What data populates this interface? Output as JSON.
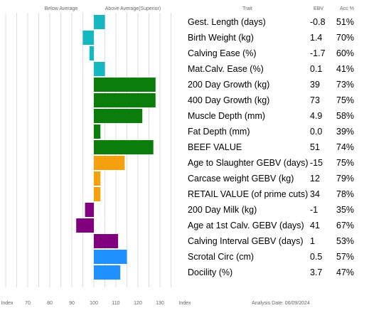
{
  "header": {
    "below_average": "Below Average",
    "above_average": "Above Average(Superior)",
    "trait": "Trait",
    "ebv": "EBV",
    "acc": "Acc %"
  },
  "footer": {
    "index_left": "Index",
    "index_right": "Index",
    "analysis_date": "Analysis Date: 06/09/2024"
  },
  "chart_data": {
    "type": "bar",
    "orientation": "horizontal",
    "baseline": 100,
    "xlim": [
      60,
      140
    ],
    "xticks": [
      70,
      80,
      90,
      100,
      110,
      120,
      130
    ],
    "grid": true,
    "rows": [
      {
        "trait": "Gest. Length (days)",
        "ebv": "-0.8",
        "acc": "51%",
        "index": 105,
        "color": "#14b8c0"
      },
      {
        "trait": "Birth Weight (kg)",
        "ebv": "1.4",
        "acc": "70%",
        "index": 95,
        "color": "#14b8c0"
      },
      {
        "trait": "Calving Ease (%)",
        "ebv": "-1.7",
        "acc": "60%",
        "index": 98,
        "color": "#14b8c0"
      },
      {
        "trait": "Mat.Calv. Ease (%)",
        "ebv": "0.1",
        "acc": "41%",
        "index": 105,
        "color": "#14b8c0"
      },
      {
        "trait": "200 Day Growth (kg)",
        "ebv": "39",
        "acc": "73%",
        "index": 128,
        "color": "#0a7d0a"
      },
      {
        "trait": "400 Day Growth (kg)",
        "ebv": "73",
        "acc": "75%",
        "index": 128,
        "color": "#0a7d0a"
      },
      {
        "trait": "Muscle Depth (mm)",
        "ebv": "4.9",
        "acc": "58%",
        "index": 122,
        "color": "#0a7d0a"
      },
      {
        "trait": "Fat Depth (mm)",
        "ebv": "0.0",
        "acc": "39%",
        "index": 103,
        "color": "#0a7d0a"
      },
      {
        "trait": "BEEF VALUE",
        "ebv": "51",
        "acc": "74%",
        "index": 127,
        "color": "#0a7d0a"
      },
      {
        "trait": "Age to Slaughter GEBV (days)",
        "ebv": "-15",
        "acc": "75%",
        "index": 114,
        "color": "#f5a00f"
      },
      {
        "trait": "Carcase weight GEBV (kg)",
        "ebv": "12",
        "acc": "79%",
        "index": 103,
        "color": "#f5a00f"
      },
      {
        "trait": "RETAIL VALUE (of prime cuts)",
        "ebv": "34",
        "acc": "78%",
        "index": 103,
        "color": "#f5a00f"
      },
      {
        "trait": "200 Day Milk (kg)",
        "ebv": "-1",
        "acc": "35%",
        "index": 96,
        "color": "#800080"
      },
      {
        "trait": "Age at 1st Calv. GEBV (days)",
        "ebv": "41",
        "acc": "67%",
        "index": 92,
        "color": "#800080"
      },
      {
        "trait": "Calving Interval GEBV (days)",
        "ebv": "1",
        "acc": "53%",
        "index": 111,
        "color": "#800080"
      },
      {
        "trait": "Scrotal Circ (cm)",
        "ebv": "0.5",
        "acc": "57%",
        "index": 115,
        "color": "#1e90ff"
      },
      {
        "trait": "Docility (%)",
        "ebv": "3.7",
        "acc": "47%",
        "index": 112,
        "color": "#1e90ff"
      }
    ]
  }
}
